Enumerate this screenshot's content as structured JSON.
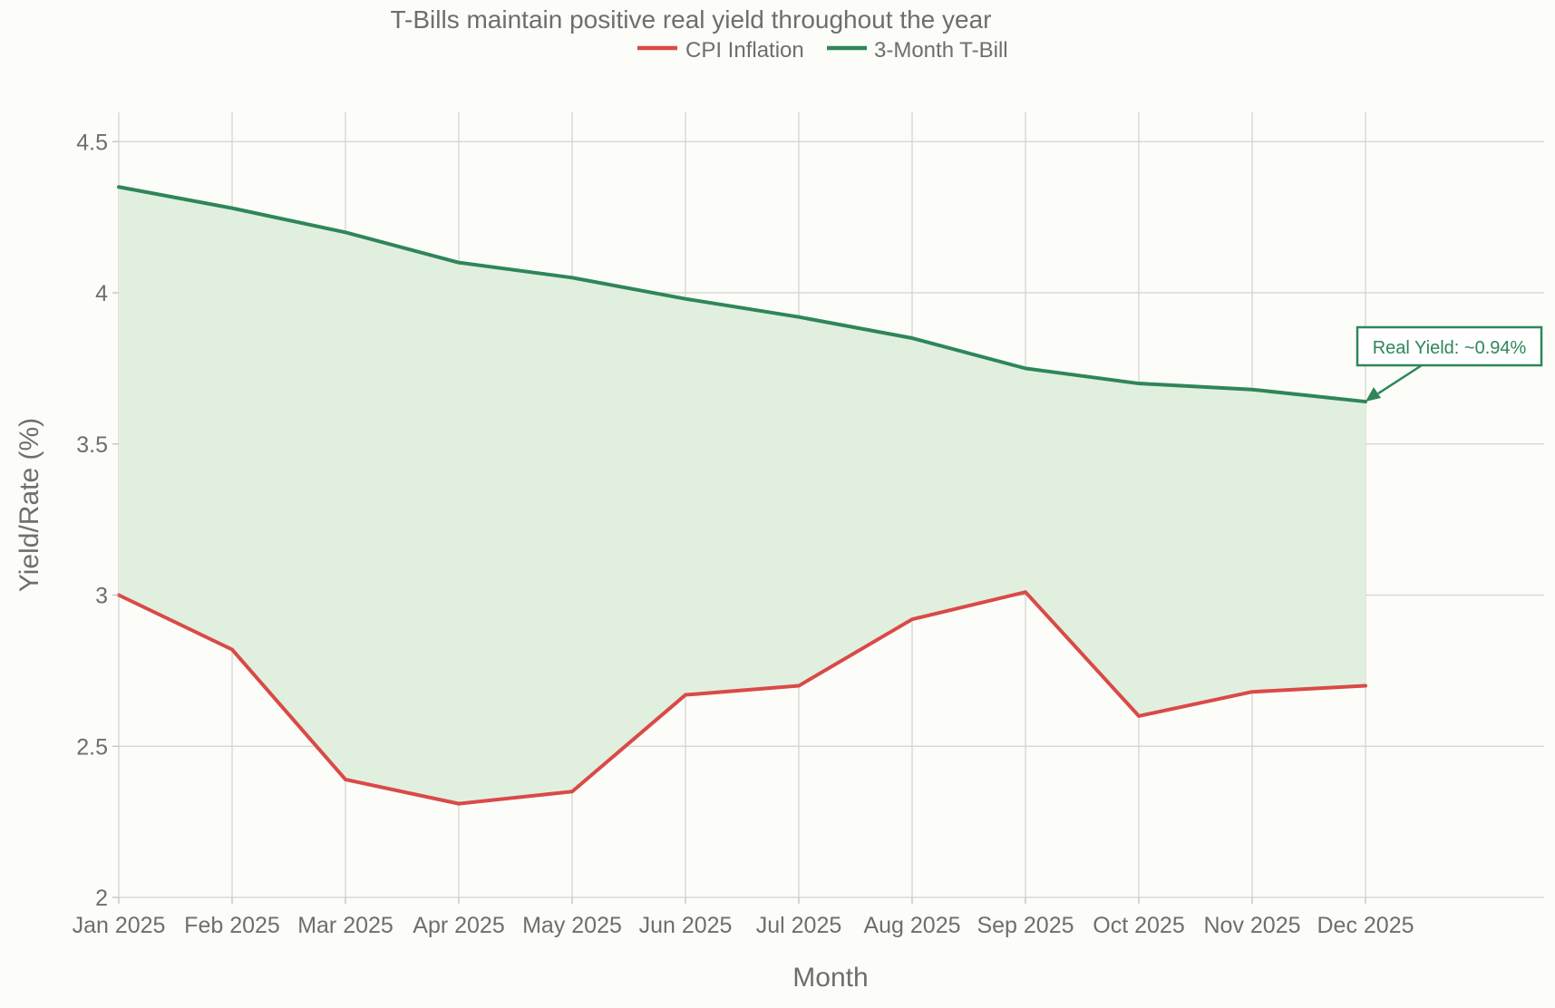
{
  "chart_data": {
    "type": "line",
    "title": "T-Bills maintain positive real yield throughout the year",
    "xlabel": "Month",
    "ylabel": "Yield/Rate (%)",
    "categories": [
      "Jan 2025",
      "Feb 2025",
      "Mar 2025",
      "Apr 2025",
      "May 2025",
      "Jun 2025",
      "Jul 2025",
      "Aug 2025",
      "Sep 2025",
      "Oct 2025",
      "Nov 2025",
      "Dec 2025"
    ],
    "ylim": [
      2,
      4.6
    ],
    "yticks": [
      "2",
      "2.5",
      "3",
      "3.5",
      "4",
      "4.5"
    ],
    "grid": true,
    "legend_position": "top-center",
    "fill_between": true,
    "series": [
      {
        "name": "CPI Inflation",
        "color": "#d94a47",
        "values": [
          3.0,
          2.82,
          2.39,
          2.31,
          2.35,
          2.67,
          2.7,
          2.92,
          3.01,
          2.6,
          2.68,
          2.7
        ]
      },
      {
        "name": "3-Month T-Bill",
        "color": "#2e8659",
        "values": [
          4.35,
          4.28,
          4.2,
          4.1,
          4.05,
          3.98,
          3.92,
          3.85,
          3.75,
          3.7,
          3.68,
          3.64
        ]
      }
    ],
    "fill_color": "#e1efdf",
    "annotation": {
      "text": "Real Yield: ~0.94%",
      "category": "Dec 2025",
      "value": 3.64,
      "color": "#2e8659"
    }
  }
}
